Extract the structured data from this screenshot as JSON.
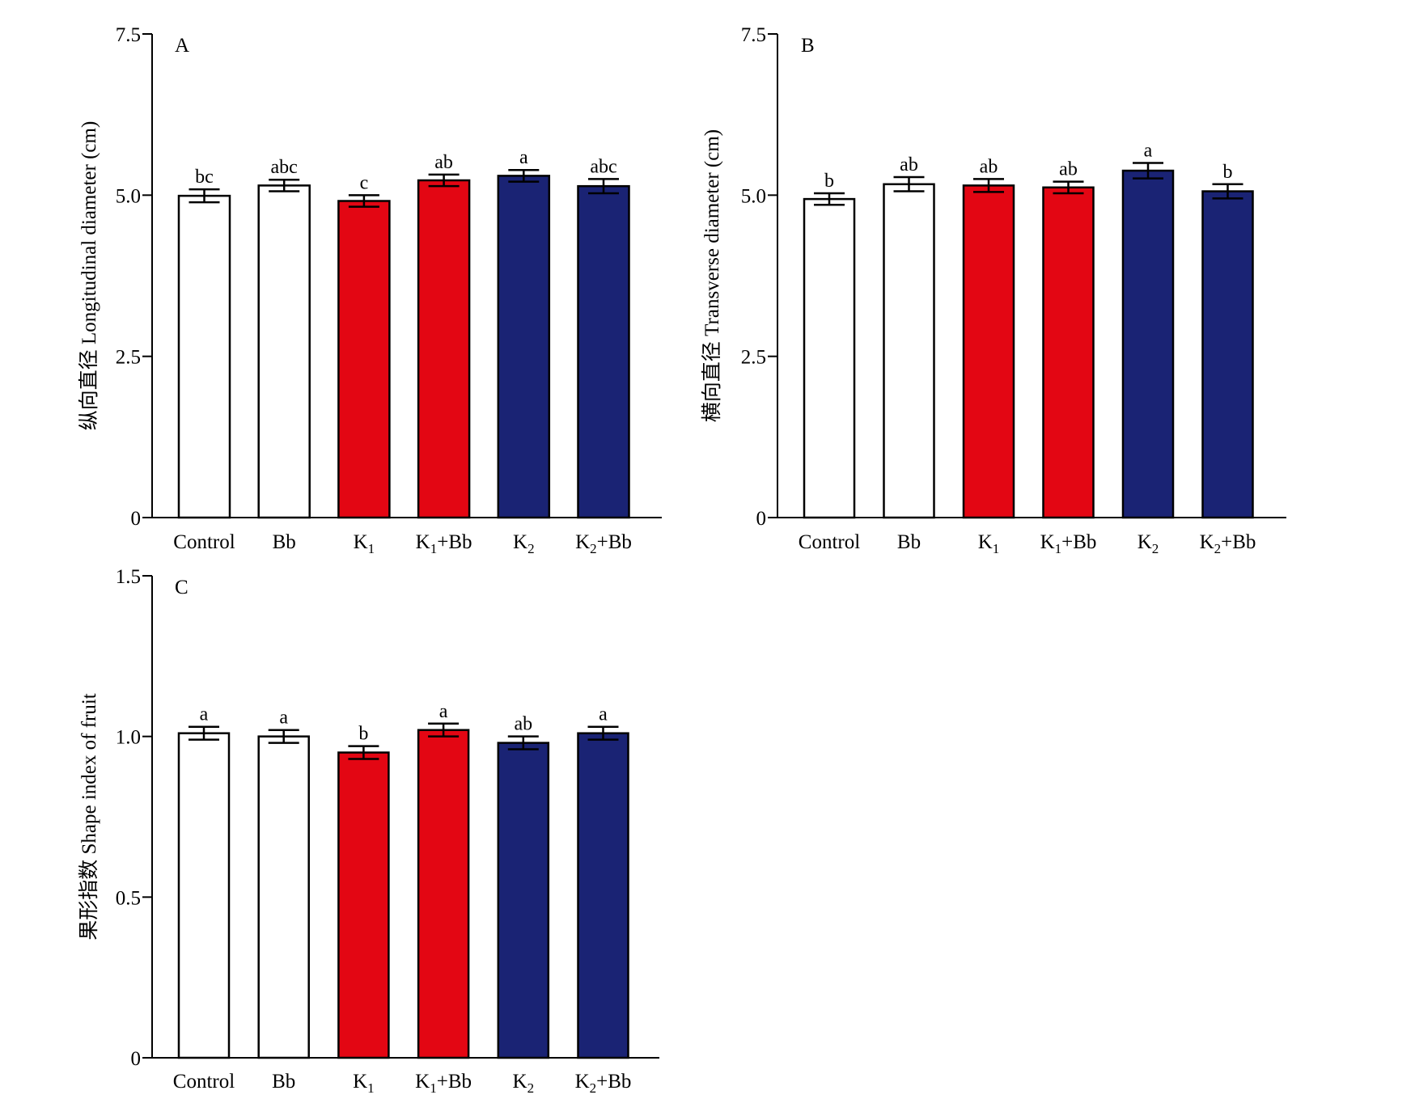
{
  "colors": {
    "white_fill": "#ffffff",
    "red_fill": "#e30613",
    "navy_fill": "#1a2374",
    "axis": "#000000"
  },
  "chart_data": [
    {
      "type": "bar",
      "panel_letter": "A",
      "ylabel": "纵向直径 Longitudinal diameter (cm)",
      "ylim": [
        0,
        7.5
      ],
      "yticks": [
        "0",
        "2.5",
        "5.0",
        "7.5"
      ],
      "categories": [
        {
          "base": "Control",
          "sub": "",
          "suffix": ""
        },
        {
          "base": "Bb",
          "sub": "",
          "suffix": ""
        },
        {
          "base": "K",
          "sub": "1",
          "suffix": ""
        },
        {
          "base": "K",
          "sub": "1",
          "suffix": "+Bb"
        },
        {
          "base": "K",
          "sub": "2",
          "suffix": ""
        },
        {
          "base": "K",
          "sub": "2",
          "suffix": "+Bb"
        }
      ],
      "values": [
        4.99,
        5.15,
        4.91,
        5.23,
        5.3,
        5.14
      ],
      "errors": [
        0.1,
        0.09,
        0.09,
        0.09,
        0.09,
        0.11
      ],
      "significance": [
        "bc",
        "abc",
        "c",
        "ab",
        "a",
        "abc"
      ],
      "bar_colors": [
        "white",
        "white",
        "red",
        "red",
        "navy",
        "navy"
      ]
    },
    {
      "type": "bar",
      "panel_letter": "B",
      "ylabel": "横向直径 Transverse diameter (cm)",
      "ylim": [
        0,
        7.5
      ],
      "yticks": [
        "0",
        "2.5",
        "5.0",
        "7.5"
      ],
      "categories": [
        {
          "base": "Control",
          "sub": "",
          "suffix": ""
        },
        {
          "base": "Bb",
          "sub": "",
          "suffix": ""
        },
        {
          "base": "K",
          "sub": "1",
          "suffix": ""
        },
        {
          "base": "K",
          "sub": "1",
          "suffix": "+Bb"
        },
        {
          "base": "K",
          "sub": "2",
          "suffix": ""
        },
        {
          "base": "K",
          "sub": "2",
          "suffix": "+Bb"
        }
      ],
      "values": [
        4.94,
        5.17,
        5.15,
        5.12,
        5.38,
        5.06
      ],
      "errors": [
        0.09,
        0.11,
        0.1,
        0.09,
        0.12,
        0.11
      ],
      "significance": [
        "b",
        "ab",
        "ab",
        "ab",
        "a",
        "b"
      ],
      "bar_colors": [
        "white",
        "white",
        "red",
        "red",
        "navy",
        "navy"
      ]
    },
    {
      "type": "bar",
      "panel_letter": "C",
      "ylabel": "果形指数 Shape index of fruit",
      "ylim": [
        0,
        1.5
      ],
      "yticks": [
        "0",
        "0.5",
        "1.0",
        "1.5"
      ],
      "categories": [
        {
          "base": "Control",
          "sub": "",
          "suffix": ""
        },
        {
          "base": "Bb",
          "sub": "",
          "suffix": ""
        },
        {
          "base": "K",
          "sub": "1",
          "suffix": ""
        },
        {
          "base": "K",
          "sub": "1",
          "suffix": "+Bb"
        },
        {
          "base": "K",
          "sub": "2",
          "suffix": ""
        },
        {
          "base": "K",
          "sub": "2",
          "suffix": "+Bb"
        }
      ],
      "values": [
        1.01,
        1.0,
        0.95,
        1.02,
        0.98,
        1.01
      ],
      "errors": [
        0.02,
        0.02,
        0.02,
        0.02,
        0.02,
        0.02
      ],
      "significance": [
        "a",
        "a",
        "b",
        "a",
        "ab",
        "a"
      ],
      "bar_colors": [
        "white",
        "white",
        "red",
        "red",
        "navy",
        "navy"
      ]
    }
  ]
}
